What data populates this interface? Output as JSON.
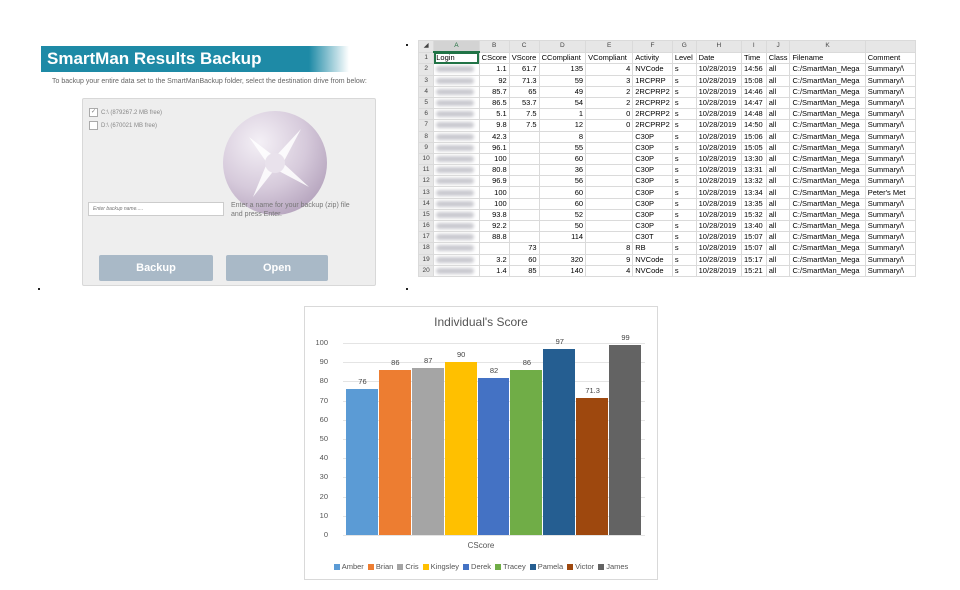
{
  "backup": {
    "title": "SmartMan Results Backup",
    "instruction": "To backup your entire data set to the SmartManBackup folder, select the destination drive from below:",
    "drives": [
      {
        "label": "C:\\ (879267.2 MB free)",
        "checked": true
      },
      {
        "label": "D:\\ (670021 MB free)",
        "checked": false
      }
    ],
    "name_placeholder": "Enter backup name.....",
    "hint": "Enter a name for your backup (zip)  file and press Enter.",
    "backup_label": "Backup",
    "open_label": "Open"
  },
  "sheet": {
    "columns": [
      "A",
      "B",
      "C",
      "D",
      "E",
      "F",
      "G",
      "H",
      "I",
      "J",
      "K",
      ""
    ],
    "header_row": [
      "Login",
      "CScore",
      "VScore",
      "CCompliant",
      "VCompliant",
      "Activity",
      "Level",
      "Date",
      "Time",
      "Class",
      "Filename",
      "Comment"
    ],
    "rows": [
      {
        "n": "2",
        "cells": [
          "",
          "1.1",
          "61.7",
          "135",
          "4",
          "NVCode",
          "s",
          "10/28/2019",
          "14:56",
          "all",
          "C:/SmartMan_Mega",
          "Summary/\\"
        ]
      },
      {
        "n": "3",
        "cells": [
          "",
          "92",
          "71.3",
          "59",
          "3",
          "1RCPRP",
          "s",
          "10/28/2019",
          "15:08",
          "all",
          "C:/SmartMan_Mega",
          "Summary/\\"
        ]
      },
      {
        "n": "4",
        "cells": [
          "",
          "85.7",
          "65",
          "49",
          "2",
          "2RCPRP2",
          "s",
          "10/28/2019",
          "14:46",
          "all",
          "C:/SmartMan_Mega",
          "Summary/\\"
        ]
      },
      {
        "n": "5",
        "cells": [
          "",
          "86.5",
          "53.7",
          "54",
          "2",
          "2RCPRP2",
          "s",
          "10/28/2019",
          "14:47",
          "all",
          "C:/SmartMan_Mega",
          "Summary/\\"
        ]
      },
      {
        "n": "6",
        "cells": [
          "",
          "5.1",
          "7.5",
          "1",
          "0",
          "2RCPRP2",
          "s",
          "10/28/2019",
          "14:48",
          "all",
          "C:/SmartMan_Mega",
          "Summary/\\"
        ]
      },
      {
        "n": "7",
        "cells": [
          "",
          "9.8",
          "7.5",
          "12",
          "0",
          "2RCPRP2",
          "s",
          "10/28/2019",
          "14:50",
          "all",
          "C:/SmartMan_Mega",
          "Summary/\\"
        ]
      },
      {
        "n": "8",
        "cells": [
          "",
          "42.3",
          "",
          "8",
          "",
          "C30P",
          "s",
          "10/28/2019",
          "15:06",
          "all",
          "C:/SmartMan_Mega",
          "Summary/\\"
        ]
      },
      {
        "n": "9",
        "cells": [
          "",
          "96.1",
          "",
          "55",
          "",
          "C30P",
          "s",
          "10/28/2019",
          "15:05",
          "all",
          "C:/SmartMan_Mega",
          "Summary/\\"
        ]
      },
      {
        "n": "10",
        "cells": [
          "",
          "100",
          "",
          "60",
          "",
          "C30P",
          "s",
          "10/28/2019",
          "13:30",
          "all",
          "C:/SmartMan_Mega",
          "Summary/\\"
        ]
      },
      {
        "n": "11",
        "cells": [
          "",
          "80.8",
          "",
          "36",
          "",
          "C30P",
          "s",
          "10/28/2019",
          "13:31",
          "all",
          "C:/SmartMan_Mega",
          "Summary/\\"
        ]
      },
      {
        "n": "12",
        "cells": [
          "",
          "96.9",
          "",
          "56",
          "",
          "C30P",
          "s",
          "10/28/2019",
          "13:32",
          "all",
          "C:/SmartMan_Mega",
          "Summary/\\"
        ]
      },
      {
        "n": "13",
        "cells": [
          "",
          "100",
          "",
          "60",
          "",
          "C30P",
          "s",
          "10/28/2019",
          "13:34",
          "all",
          "C:/SmartMan_Mega",
          "Peter's Met"
        ]
      },
      {
        "n": "14",
        "cells": [
          "",
          "100",
          "",
          "60",
          "",
          "C30P",
          "s",
          "10/28/2019",
          "13:35",
          "all",
          "C:/SmartMan_Mega",
          "Summary/\\"
        ]
      },
      {
        "n": "15",
        "cells": [
          "",
          "93.8",
          "",
          "52",
          "",
          "C30P",
          "s",
          "10/28/2019",
          "15:32",
          "all",
          "C:/SmartMan_Mega",
          "Summary/\\"
        ]
      },
      {
        "n": "16",
        "cells": [
          "",
          "92.2",
          "",
          "50",
          "",
          "C30P",
          "s",
          "10/28/2019",
          "13:40",
          "all",
          "C:/SmartMan_Mega",
          "Summary/\\"
        ]
      },
      {
        "n": "17",
        "cells": [
          "",
          "88.8",
          "",
          "114",
          "",
          "C30T",
          "s",
          "10/28/2019",
          "15:07",
          "all",
          "C:/SmartMan_Mega",
          "Summary/\\"
        ]
      },
      {
        "n": "18",
        "cells": [
          "",
          "",
          "73",
          "",
          "8",
          "RB",
          "s",
          "10/28/2019",
          "15:07",
          "all",
          "C:/SmartMan_Mega",
          "Summary/\\"
        ]
      },
      {
        "n": "19",
        "cells": [
          "",
          "3.2",
          "60",
          "320",
          "9",
          "NVCode",
          "s",
          "10/28/2019",
          "15:17",
          "all",
          "C:/SmartMan_Mega",
          "Summary/\\"
        ]
      },
      {
        "n": "20",
        "cells": [
          "",
          "1.4",
          "85",
          "140",
          "4",
          "NVCode",
          "s",
          "10/28/2019",
          "15:21",
          "all",
          "C:/SmartMan_Mega",
          "Summary/\\"
        ]
      }
    ]
  },
  "chart_data": {
    "type": "bar",
    "title": "Individual's Score",
    "xlabel": "CScore",
    "ylabel": "",
    "ylim": [
      0,
      100
    ],
    "yticks": [
      0,
      10,
      20,
      30,
      40,
      50,
      60,
      70,
      80,
      90,
      100
    ],
    "legend_position": "bottom",
    "grid": true,
    "categories": [
      "CScore"
    ],
    "series": [
      {
        "name": "Amber",
        "values": [
          76
        ],
        "color": "#5b9bd5"
      },
      {
        "name": "Brian",
        "values": [
          86
        ],
        "color": "#ed7d31"
      },
      {
        "name": "Cris",
        "values": [
          87
        ],
        "color": "#a5a5a5"
      },
      {
        "name": "Kingsley",
        "values": [
          90
        ],
        "color": "#ffc000"
      },
      {
        "name": "Derek",
        "values": [
          82
        ],
        "color": "#4472c4"
      },
      {
        "name": "Tracey",
        "values": [
          86
        ],
        "color": "#70ad47"
      },
      {
        "name": "Pamela",
        "values": [
          97
        ],
        "color": "#255e91"
      },
      {
        "name": "Victor",
        "values": [
          71.3
        ],
        "color": "#9e480e"
      },
      {
        "name": "James",
        "values": [
          99
        ],
        "color": "#636363"
      }
    ]
  }
}
